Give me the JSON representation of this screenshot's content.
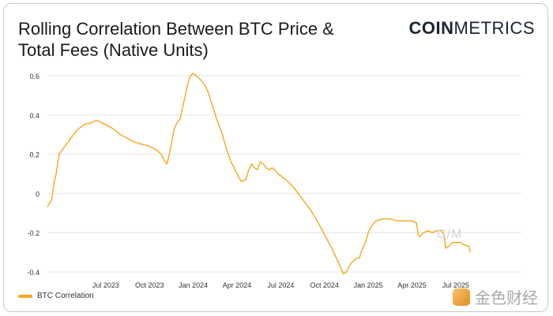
{
  "header": {
    "title": "Rolling Correlation Between BTC Price & Total Fees (Native Units)",
    "logo_bold": "COIN",
    "logo_light": "METRICS"
  },
  "watermark": {
    "text": "金色财经",
    "center_mark": "C/M"
  },
  "colors": {
    "line": "#F4A81D",
    "grid": "#e6e6e6",
    "text": "#333333"
  },
  "chart_data": {
    "type": "line",
    "title": "Rolling Correlation Between BTC Price & Total Fees (Native Units)",
    "xlabel": "",
    "ylabel": "",
    "ylim": [
      -0.42,
      0.62
    ],
    "xlim": [
      0,
      32.5
    ],
    "yticks": [
      0.6,
      0.4,
      0.2,
      0,
      -0.2,
      -0.4
    ],
    "ytick_labels": [
      "0.6",
      "0.4",
      "0.2",
      "0",
      "-0.2",
      "-0.4"
    ],
    "xticks": [
      {
        "pos": 4,
        "label": "Jul 2023"
      },
      {
        "pos": 7,
        "label": "Oct 2023"
      },
      {
        "pos": 10,
        "label": "Jan 2024"
      },
      {
        "pos": 13,
        "label": "Apr 2024"
      },
      {
        "pos": 16,
        "label": "Jul 2024"
      },
      {
        "pos": 19,
        "label": "Oct 2024"
      },
      {
        "pos": 22,
        "label": "Jan 2025"
      },
      {
        "pos": 25,
        "label": "Apr 2025"
      },
      {
        "pos": 28,
        "label": "Jul 2025"
      }
    ],
    "legend": {
      "position": "bottom-left"
    },
    "series": [
      {
        "name": "BTC Correlation",
        "color": "#F4A81D",
        "x": [
          0.0,
          0.3,
          0.45,
          0.6,
          0.7,
          0.8,
          1.0,
          1.3,
          1.6,
          2.0,
          2.5,
          3.0,
          3.3,
          3.5,
          3.7,
          4.0,
          4.5,
          5.0,
          5.5,
          6.0,
          6.5,
          7.0,
          7.5,
          7.8,
          8.0,
          8.2,
          8.3,
          8.5,
          8.7,
          8.9,
          9.1,
          9.4,
          9.6,
          9.8,
          10.0,
          10.2,
          10.5,
          10.8,
          11.0,
          11.3,
          11.6,
          12.0,
          12.3,
          12.6,
          13.0,
          13.3,
          13.6,
          13.8,
          14.0,
          14.2,
          14.4,
          14.5,
          14.6,
          14.8,
          15.0,
          15.2,
          15.4,
          15.6,
          15.8,
          16.0,
          16.5,
          17.0,
          17.5,
          18.0,
          18.5,
          19.0,
          19.5,
          20.0,
          20.3,
          20.5,
          20.7,
          20.9,
          21.2,
          21.4,
          21.5,
          21.8,
          22.0,
          22.2,
          22.5,
          23.0,
          23.5,
          24.0,
          24.5,
          25.0,
          25.3,
          25.4,
          25.5,
          25.8,
          26.1,
          26.4,
          26.7,
          27.0,
          27.2,
          27.3,
          27.5,
          27.8,
          28.0,
          28.3,
          28.5,
          28.9,
          29.0
        ],
        "y": [
          -0.07,
          -0.03,
          0.05,
          0.1,
          0.15,
          0.2,
          0.22,
          0.25,
          0.28,
          0.32,
          0.35,
          0.36,
          0.37,
          0.37,
          0.36,
          0.35,
          0.33,
          0.3,
          0.28,
          0.26,
          0.25,
          0.24,
          0.22,
          0.2,
          0.17,
          0.15,
          0.18,
          0.25,
          0.33,
          0.36,
          0.38,
          0.48,
          0.55,
          0.6,
          0.61,
          0.6,
          0.58,
          0.55,
          0.52,
          0.45,
          0.38,
          0.3,
          0.22,
          0.16,
          0.1,
          0.06,
          0.07,
          0.12,
          0.15,
          0.13,
          0.12,
          0.14,
          0.16,
          0.15,
          0.13,
          0.12,
          0.13,
          0.12,
          0.1,
          0.09,
          0.06,
          0.02,
          -0.03,
          -0.08,
          -0.14,
          -0.21,
          -0.28,
          -0.36,
          -0.41,
          -0.4,
          -0.37,
          -0.35,
          -0.33,
          -0.33,
          -0.3,
          -0.25,
          -0.2,
          -0.17,
          -0.14,
          -0.13,
          -0.13,
          -0.14,
          -0.14,
          -0.14,
          -0.15,
          -0.2,
          -0.22,
          -0.2,
          -0.19,
          -0.2,
          -0.19,
          -0.19,
          -0.21,
          -0.28,
          -0.27,
          -0.25,
          -0.25,
          -0.25,
          -0.26,
          -0.27,
          -0.3
        ]
      }
    ]
  }
}
